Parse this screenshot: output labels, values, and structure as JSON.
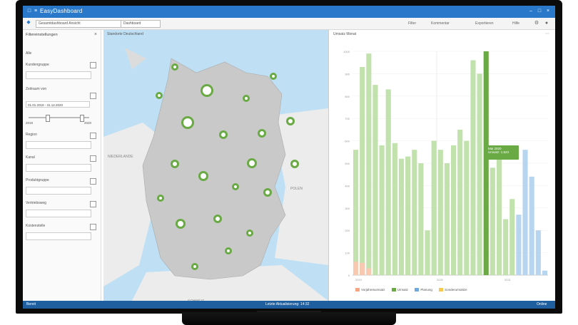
{
  "app": {
    "title": "EasyDashboard"
  },
  "toolbar": {
    "field1": "Gesamtdashboard Ansicht",
    "field2": "Dashboard",
    "right_items": [
      "Filter",
      "Kommentar",
      "Exportieren",
      "Hilfe"
    ]
  },
  "filters": {
    "header": "Filtereinstellungen",
    "select_all": "Alle",
    "labels": [
      "Kundengruppe",
      "Zeitraum von",
      "Region",
      "Kanal",
      "Produktgruppe",
      "Vertriebsweg",
      "Kostenstelle"
    ],
    "date_value": "01.01.2019 - 31.12.2020",
    "range_min": "2019",
    "range_max": "2020"
  },
  "map": {
    "title": "Standorte Deutschland",
    "label_west": "NIEDERLANDE",
    "label_east": "POLEN",
    "label_south": "SCHWEIZ"
  },
  "chart": {
    "title": "Umsatz Monat",
    "tooltip_line1": "Mai 2020",
    "tooltip_line2": "Umsatz: 1.523"
  },
  "chart_data": {
    "type": "bar",
    "ylim": [
      0,
      1000
    ],
    "yticks": [
      "0",
      "100",
      "200",
      "300",
      "400",
      "500",
      "600",
      "700",
      "800",
      "900",
      "1000"
    ],
    "xticks": [
      "2019",
      "2020",
      "2021"
    ],
    "series": [
      {
        "name": "Vorjahresumsatz",
        "color": "#f4a582"
      },
      {
        "name": "Umsatz",
        "color": "#a6d38a"
      },
      {
        "name": "Planung",
        "color": "#9fc5e8"
      },
      {
        "name": "Sonderumsätze",
        "color": "#f7c84b"
      }
    ],
    "bars": [
      {
        "s": 1,
        "v": 560
      },
      {
        "s": 1,
        "v": 930
      },
      {
        "s": 1,
        "v": 990
      },
      {
        "s": 1,
        "v": 850
      },
      {
        "s": 1,
        "v": 580
      },
      {
        "s": 1,
        "v": 830
      },
      {
        "s": 1,
        "v": 590
      },
      {
        "s": 1,
        "v": 520
      },
      {
        "s": 1,
        "v": 530
      },
      {
        "s": 1,
        "v": 560
      },
      {
        "s": 1,
        "v": 500
      },
      {
        "s": 1,
        "v": 200
      },
      {
        "s": 1,
        "v": 600
      },
      {
        "s": 1,
        "v": 560
      },
      {
        "s": 1,
        "v": 500
      },
      {
        "s": 1,
        "v": 580
      },
      {
        "s": 1,
        "v": 650
      },
      {
        "s": 1,
        "v": 600
      },
      {
        "s": 1,
        "v": 960
      },
      {
        "s": 1,
        "v": 900
      },
      {
        "s": 1,
        "v": 1000
      },
      {
        "s": 1,
        "v": 480
      },
      {
        "s": 1,
        "v": 550
      },
      {
        "s": 1,
        "v": 250
      },
      {
        "s": 1,
        "v": 340
      },
      {
        "s": 2,
        "v": 270
      },
      {
        "s": 2,
        "v": 560
      },
      {
        "s": 2,
        "v": 440
      },
      {
        "s": 2,
        "v": 200
      },
      {
        "s": 2,
        "v": 20
      }
    ],
    "bars_prev": [
      60,
      55,
      30
    ],
    "highlight_index": 20
  },
  "status": {
    "left": "Bereit",
    "center": "Letzte Aktualisierung: 14:32",
    "right": "Online"
  }
}
